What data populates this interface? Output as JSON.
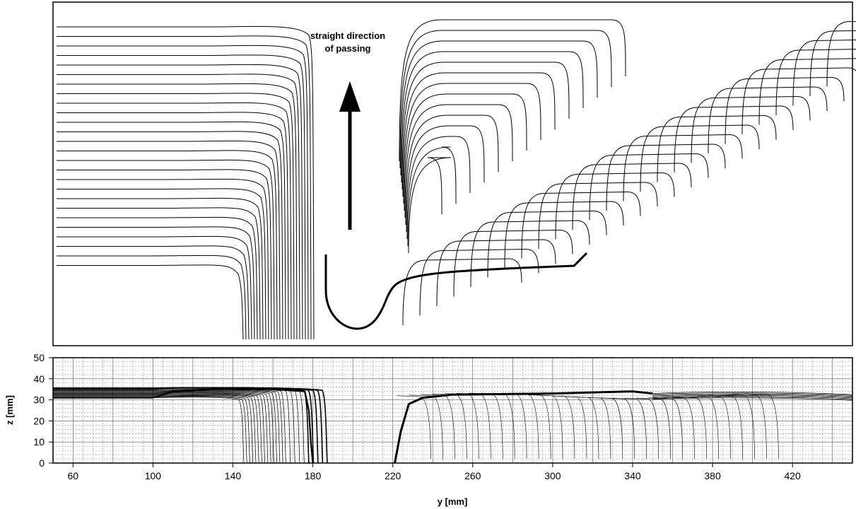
{
  "chart_data": [
    {
      "type": "line",
      "panel": "top",
      "description_of_content": "stacked profile lines",
      "annotation": {
        "line1": "straight direction",
        "line2": "of passing"
      },
      "arrow": "up"
    },
    {
      "type": "line",
      "panel": "bottom",
      "xlabel": "y [mm]",
      "ylabel": "z [mm]",
      "xlim": [
        50,
        450
      ],
      "ylim": [
        0,
        50
      ],
      "x_ticks": [
        60,
        100,
        140,
        180,
        220,
        260,
        300,
        340,
        380,
        420
      ],
      "y_ticks": [
        0,
        10,
        20,
        30,
        40,
        50
      ],
      "grid": true,
      "series": [
        {
          "role": "left-profiles",
          "x": [
            50,
            100,
            110,
            130,
            160,
            176,
            178,
            179,
            180
          ],
          "y": [
            31,
            31,
            34,
            35,
            35,
            34,
            25,
            10,
            0
          ]
        },
        {
          "role": "right-profile-bold",
          "x": [
            221,
            224,
            228,
            235,
            250,
            300,
            340,
            350
          ],
          "y": [
            0,
            15,
            28,
            31,
            32.5,
            33,
            34,
            33
          ]
        }
      ]
    }
  ]
}
